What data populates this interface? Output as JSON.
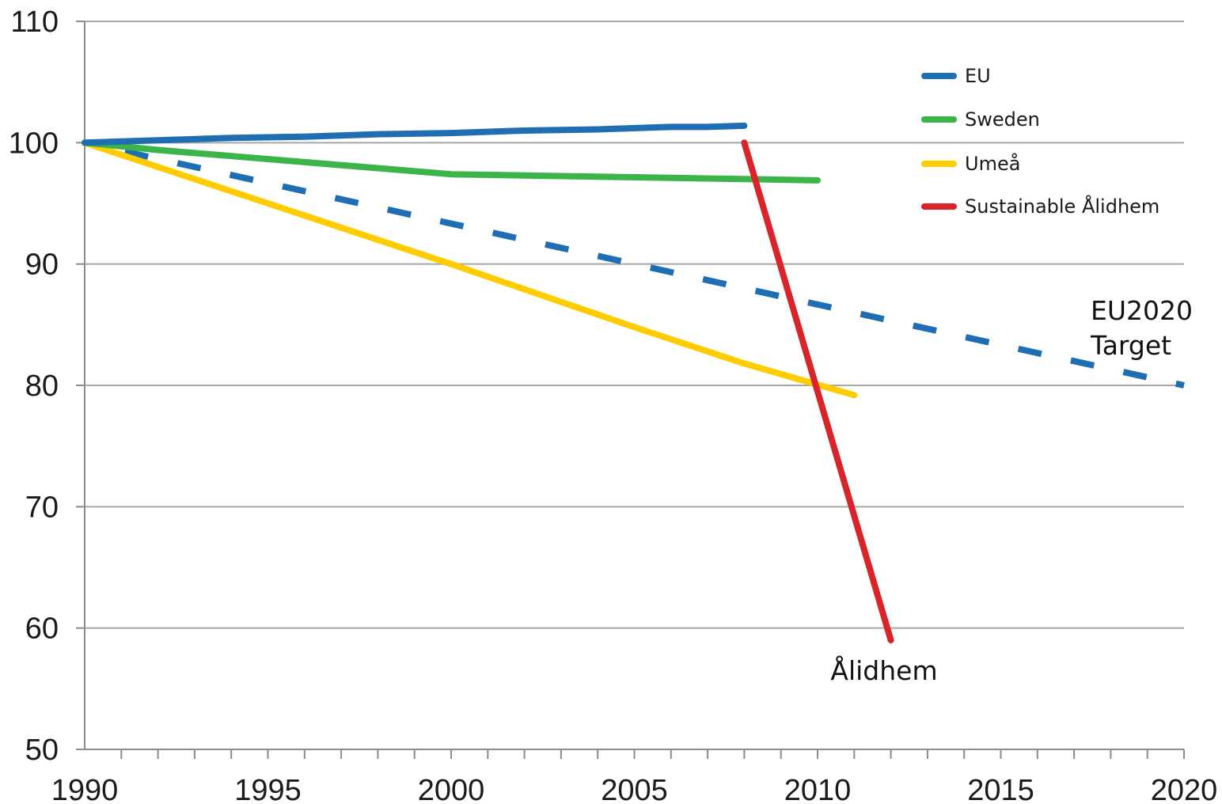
{
  "chart_data": {
    "type": "line",
    "title": "",
    "xlabel": "",
    "ylabel": "",
    "xlim": [
      1990,
      2020
    ],
    "ylim": [
      50,
      110
    ],
    "x_ticks": [
      "1990",
      "1995",
      "2000",
      "2005",
      "2010",
      "2015",
      "2020"
    ],
    "y_ticks": [
      "50",
      "60",
      "70",
      "80",
      "90",
      "100",
      "110"
    ],
    "grid": "horizontal",
    "legend_position": "top-right",
    "series": [
      {
        "name": "EU",
        "color": "#1f6db3",
        "style": "solid",
        "x": [
          1990,
          1992,
          1994,
          1996,
          1998,
          2000,
          2002,
          2004,
          2006,
          2007,
          2008
        ],
        "y": [
          100,
          100.2,
          100.4,
          100.5,
          100.7,
          100.8,
          101.0,
          101.1,
          101.3,
          101.3,
          101.4
        ]
      },
      {
        "name": "Sweden",
        "color": "#3bb44a",
        "style": "solid",
        "x": [
          1990,
          1992,
          1994,
          1996,
          1998,
          2000,
          2002,
          2004,
          2006,
          2008,
          2010
        ],
        "y": [
          100,
          99.4,
          98.9,
          98.4,
          97.9,
          97.4,
          97.3,
          97.2,
          97.1,
          97.0,
          96.9
        ]
      },
      {
        "name": "Umeå",
        "color": "#ffcc00",
        "style": "solid",
        "x": [
          1990,
          1995,
          2000,
          2005,
          2008,
          2011
        ],
        "y": [
          100,
          95.0,
          90.0,
          84.8,
          81.8,
          79.2
        ]
      },
      {
        "name": "Sustainable Ålidhem",
        "color": "#d9242a",
        "style": "solid",
        "x": [
          2008,
          2012
        ],
        "y": [
          100,
          59
        ]
      },
      {
        "name": "",
        "color": "#1f6db3",
        "style": "dashed",
        "x": [
          1990,
          2020
        ],
        "y": [
          100,
          80
        ]
      }
    ],
    "annotations": [
      {
        "text_lines": [
          "EU2020",
          "Target"
        ]
      },
      {
        "text": "Ålidhem"
      }
    ]
  }
}
